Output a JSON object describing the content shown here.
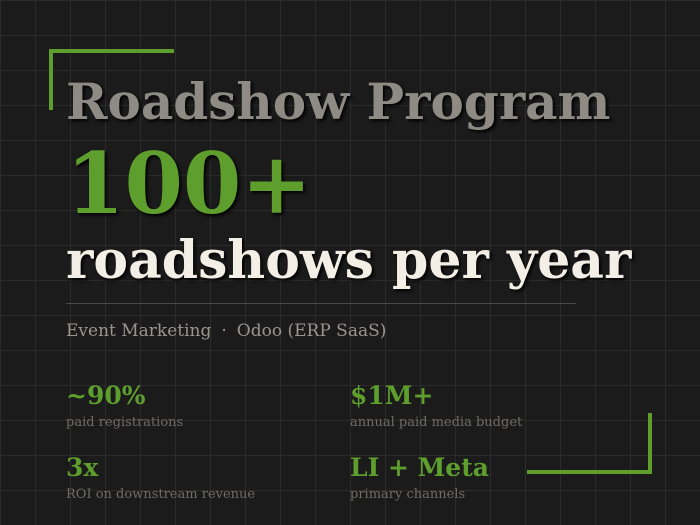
{
  "header": {
    "title": "Roadshow Program",
    "headline": "100+",
    "subheadline": "roadshows per year"
  },
  "tags": [
    "Event Marketing",
    "Odoo (ERP SaaS)"
  ],
  "stats": [
    {
      "value": "~90%",
      "label": "paid registrations"
    },
    {
      "value": "$1M+",
      "label": "annual paid media budget"
    },
    {
      "value": "3x",
      "label": "ROI on downstream revenue"
    },
    {
      "value": "LI + Meta",
      "label": "primary channels"
    }
  ]
}
